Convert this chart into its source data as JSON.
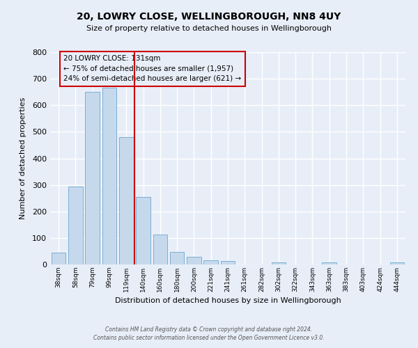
{
  "title": "20, LOWRY CLOSE, WELLINGBOROUGH, NN8 4UY",
  "subtitle": "Size of property relative to detached houses in Wellingborough",
  "bar_labels": [
    "38sqm",
    "58sqm",
    "79sqm",
    "99sqm",
    "119sqm",
    "140sqm",
    "160sqm",
    "180sqm",
    "200sqm",
    "221sqm",
    "241sqm",
    "261sqm",
    "282sqm",
    "302sqm",
    "322sqm",
    "343sqm",
    "363sqm",
    "383sqm",
    "403sqm",
    "424sqm",
    "444sqm"
  ],
  "bar_values": [
    45,
    295,
    650,
    665,
    480,
    255,
    113,
    48,
    28,
    15,
    13,
    0,
    0,
    8,
    0,
    0,
    7,
    0,
    0,
    0,
    7
  ],
  "bar_color": "#c6d9ec",
  "bar_edge_color": "#7aafd4",
  "xlabel": "Distribution of detached houses by size in Wellingborough",
  "ylabel": "Number of detached properties",
  "ylim": [
    0,
    800
  ],
  "yticks": [
    0,
    100,
    200,
    300,
    400,
    500,
    600,
    700,
    800
  ],
  "vline_index": 4.5,
  "vline_color": "#cc0000",
  "annotation_title": "20 LOWRY CLOSE: 131sqm",
  "annotation_line1": "← 75% of detached houses are smaller (1,957)",
  "annotation_line2": "24% of semi-detached houses are larger (621) →",
  "annotation_box_color": "#cc0000",
  "footer_line1": "Contains HM Land Registry data © Crown copyright and database right 2024.",
  "footer_line2": "Contains public sector information licensed under the Open Government Licence v3.0.",
  "background_color": "#e8eef8",
  "grid_color": "#ffffff"
}
